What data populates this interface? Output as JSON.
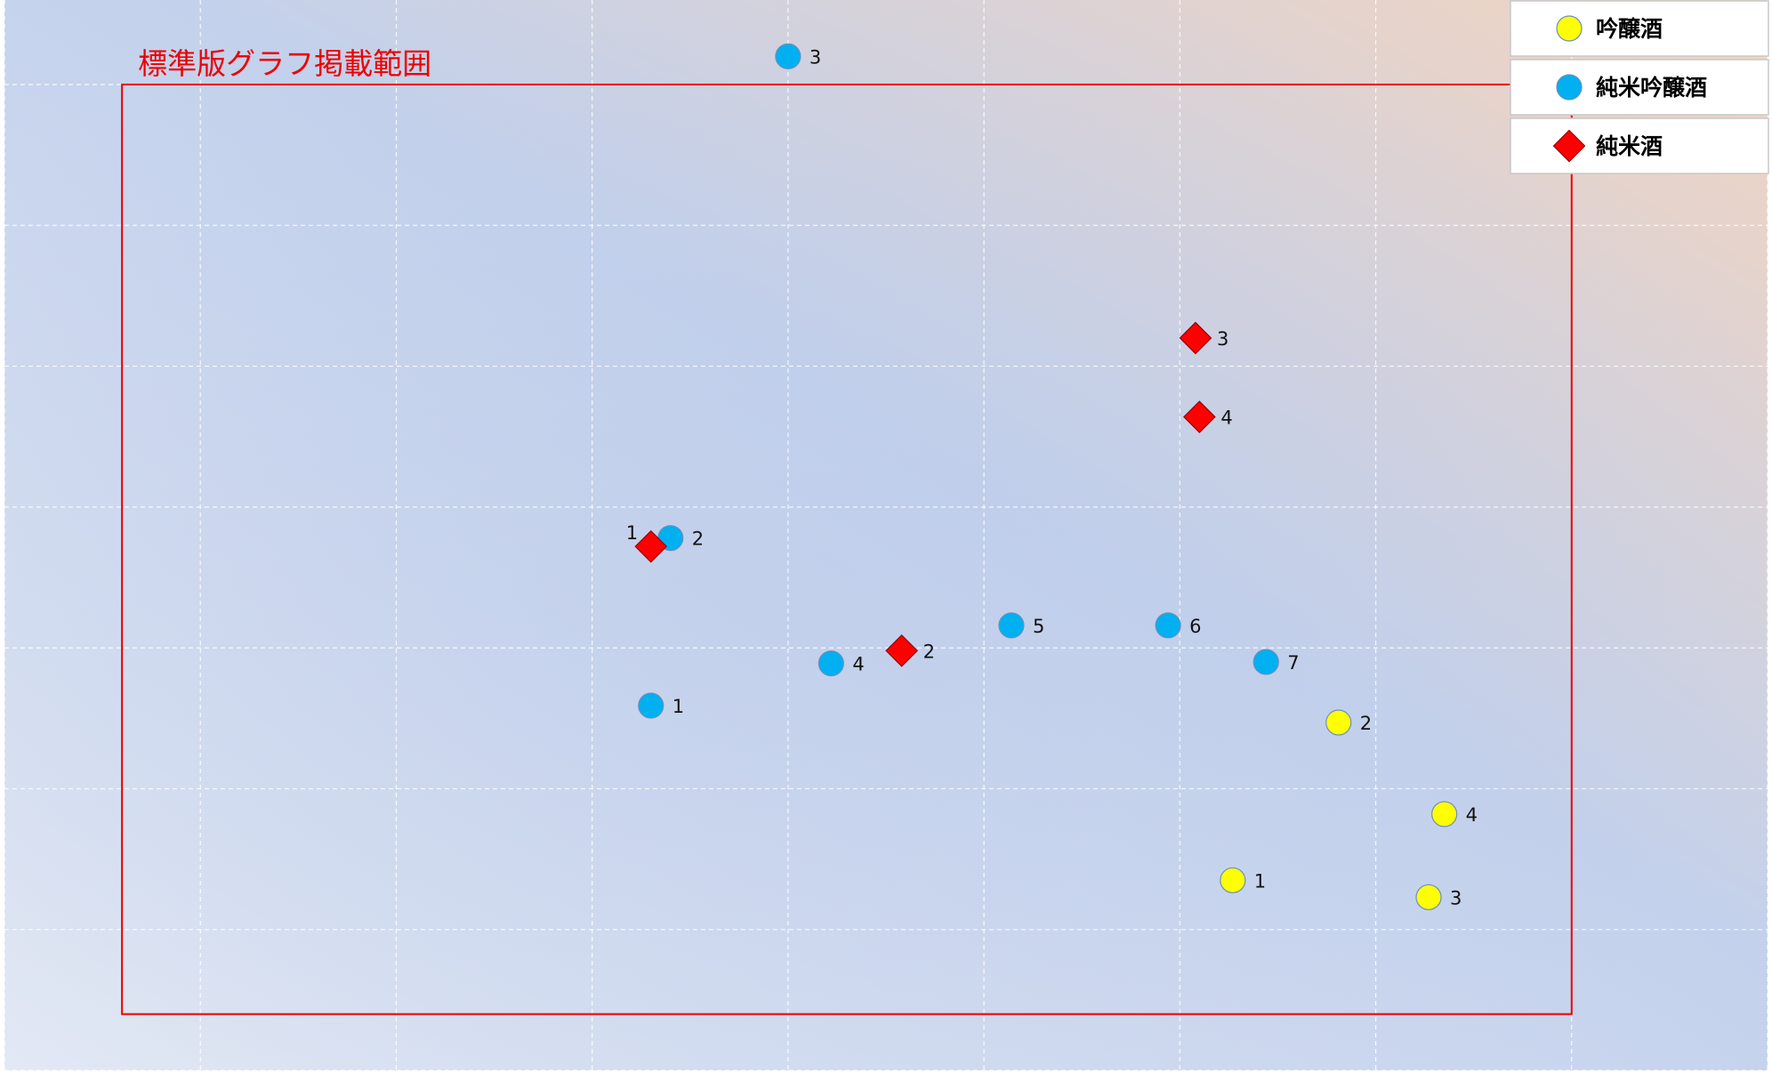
{
  "chart_data": {
    "type": "scatter",
    "title": "",
    "xlabel": "",
    "ylabel": "",
    "xlim": [
      0,
      9
    ],
    "ylim": [
      0,
      7.6
    ],
    "grid": true,
    "legend_position": "top-right",
    "region_box": {
      "label": "標準版グラフ掲載範囲",
      "x_range": [
        0.6,
        8.0
      ],
      "y_range": [
        0.4,
        7.0
      ],
      "color": "#ee0000"
    },
    "series": [
      {
        "name": "吟醸酒",
        "marker": "circle",
        "color": "#ffff00",
        "points": [
          {
            "label": "1",
            "x": 6.27,
            "y": 1.35
          },
          {
            "label": "2",
            "x": 6.81,
            "y": 2.47
          },
          {
            "label": "3",
            "x": 7.27,
            "y": 1.23
          },
          {
            "label": "4",
            "x": 7.35,
            "y": 1.82
          }
        ]
      },
      {
        "name": "純米吟醸酒",
        "marker": "circle",
        "color": "#00b0f0",
        "points": [
          {
            "label": "1",
            "x": 3.3,
            "y": 2.59
          },
          {
            "label": "2",
            "x": 3.4,
            "y": 3.78
          },
          {
            "label": "3",
            "x": 4.0,
            "y": 7.2
          },
          {
            "label": "4",
            "x": 4.22,
            "y": 2.89
          },
          {
            "label": "5",
            "x": 5.14,
            "y": 3.16
          },
          {
            "label": "6",
            "x": 5.94,
            "y": 3.16
          },
          {
            "label": "7",
            "x": 6.44,
            "y": 2.9
          }
        ]
      },
      {
        "name": "純米酒",
        "marker": "diamond",
        "color": "#ff0000",
        "points": [
          {
            "label": "1",
            "x": 3.3,
            "y": 3.72
          },
          {
            "label": "2",
            "x": 4.58,
            "y": 2.98
          },
          {
            "label": "3",
            "x": 6.08,
            "y": 5.2
          },
          {
            "label": "4",
            "x": 6.1,
            "y": 4.64
          }
        ]
      }
    ],
    "legend_order": [
      "吟醸酒",
      "純米吟醸酒",
      "純米酒"
    ]
  }
}
